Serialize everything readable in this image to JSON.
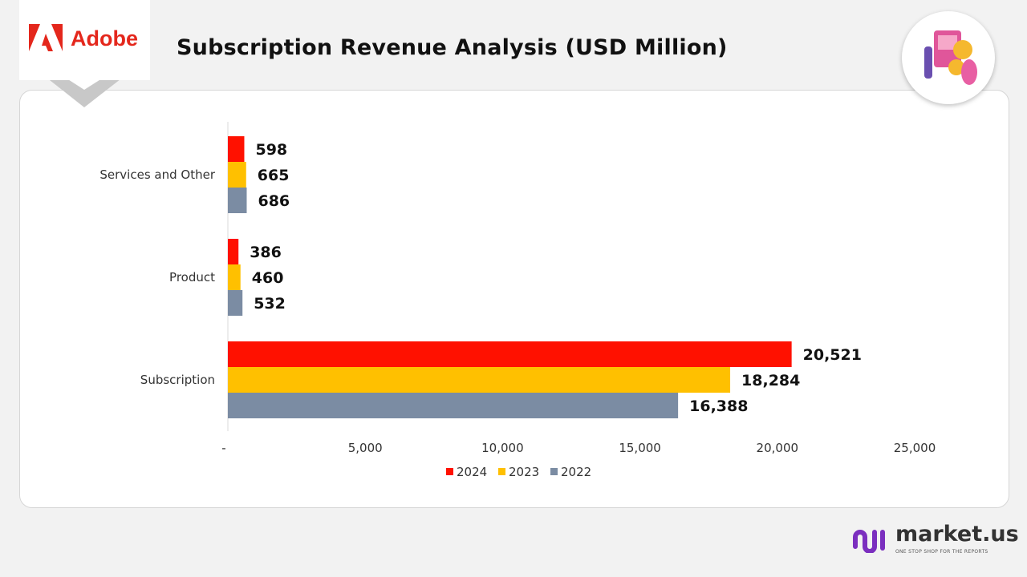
{
  "brand": {
    "name": "Adobe",
    "color": "#e4271c"
  },
  "title": "Subscription Revenue Analysis (USD Million)",
  "footer": {
    "name": "market.us",
    "tagline": "ONE STOP SHOP FOR THE REPORTS"
  },
  "chart_data": {
    "type": "bar",
    "orientation": "horizontal",
    "title": "Subscription Revenue Analysis (USD Million)",
    "categories": [
      "Services and Other",
      "Product",
      "Subscription"
    ],
    "series": [
      {
        "name": "2024",
        "color": "#ff1100",
        "values": [
          598,
          386,
          20521
        ],
        "labels": [
          "598",
          "386",
          "20,521"
        ]
      },
      {
        "name": "2023",
        "color": "#ffc000",
        "values": [
          665,
          460,
          18284
        ],
        "labels": [
          "665",
          "460",
          "18,284"
        ]
      },
      {
        "name": "2022",
        "color": "#7b8ca3",
        "values": [
          686,
          532,
          16388
        ],
        "labels": [
          "686",
          "532",
          "16,388"
        ]
      }
    ],
    "xlim": [
      0,
      25000
    ],
    "xticks": [
      0,
      5000,
      10000,
      15000,
      20000,
      25000
    ],
    "xtick_labels": [
      "-",
      "5,000",
      "10,000",
      "15,000",
      "20,000",
      "25,000"
    ],
    "grid": false,
    "legend": "bottom"
  }
}
